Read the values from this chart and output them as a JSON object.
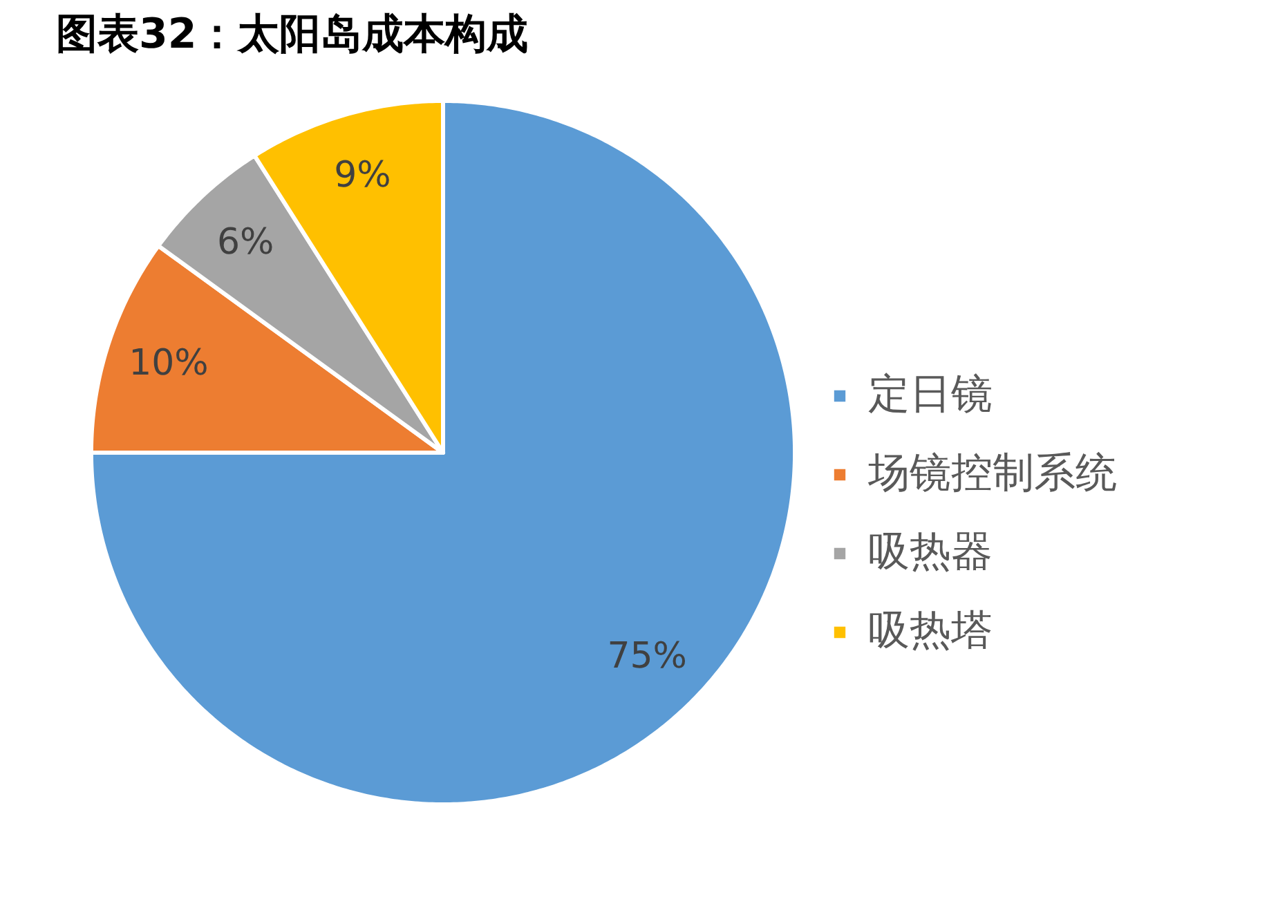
{
  "chart_data": {
    "type": "pie",
    "title": "图表32：太阳岛成本构成",
    "categories": [
      "定日镜",
      "场镜控制系统",
      "吸热器",
      "吸热塔"
    ],
    "values": [
      75,
      10,
      6,
      9
    ],
    "colors": [
      "#5b9bd5",
      "#ed7d31",
      "#a5a5a5",
      "#ffc000"
    ],
    "value_labels": [
      "75%",
      "10%",
      "6%",
      "9%"
    ],
    "legend": "right"
  }
}
